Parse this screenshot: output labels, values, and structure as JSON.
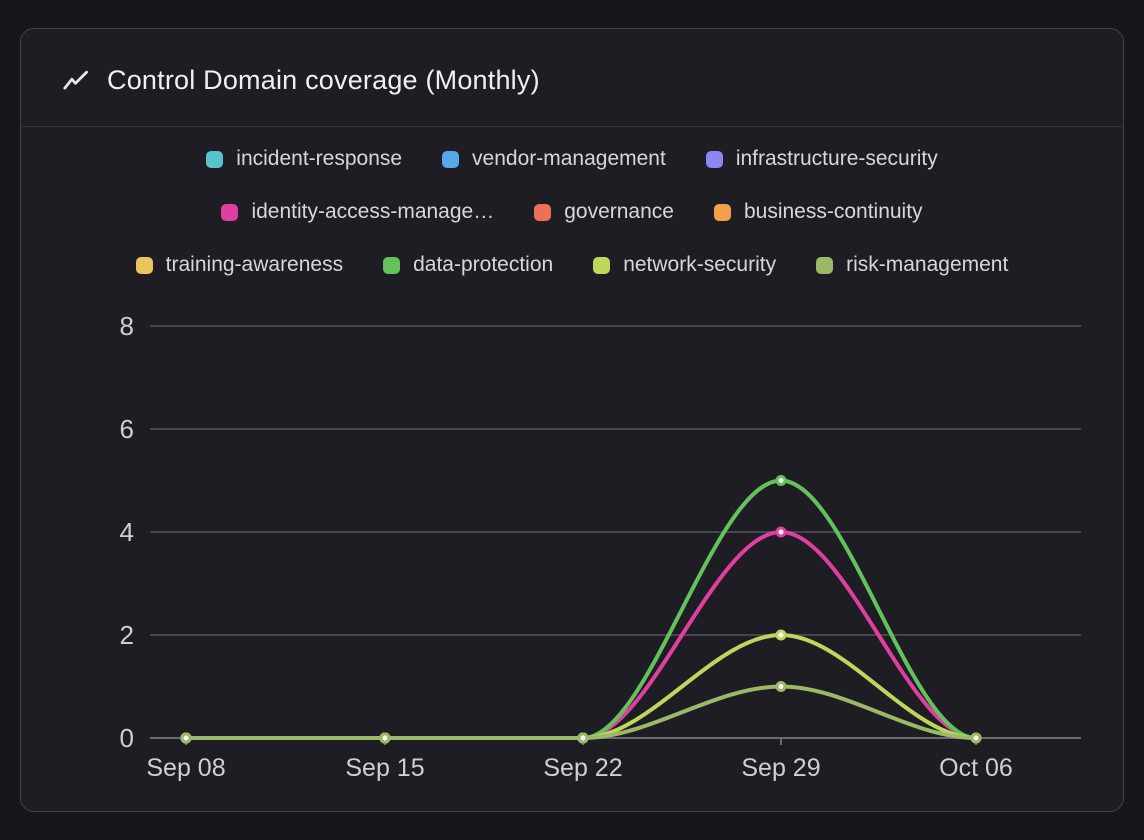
{
  "card": {
    "icon": "trend-line-icon"
  },
  "chart_data": {
    "type": "line",
    "title": "Control Domain coverage (Monthly)",
    "xlabel": "",
    "ylabel": "",
    "categories": [
      "Sep 08",
      "Sep 15",
      "Sep 22",
      "Sep 29",
      "Oct 06"
    ],
    "ylim": [
      0,
      8
    ],
    "yticks": [
      0,
      2,
      4,
      6,
      8
    ],
    "grid": true,
    "legend_position": "top",
    "legend_rows": [
      [
        0,
        1,
        2
      ],
      [
        3,
        4,
        5
      ],
      [
        6,
        7,
        8,
        9
      ]
    ],
    "series": [
      {
        "name": "incident-response",
        "label": "incident-response",
        "color": "#56c3cf",
        "values": [
          0,
          0,
          0,
          null,
          null
        ]
      },
      {
        "name": "vendor-management",
        "label": "vendor-management",
        "color": "#58a7e8",
        "values": [
          0,
          0,
          0,
          null,
          null
        ]
      },
      {
        "name": "infrastructure-security",
        "label": "infrastructure-security",
        "color": "#8b86f2",
        "values": [
          0,
          0,
          0,
          null,
          null
        ]
      },
      {
        "name": "identity-access-management",
        "label": "identity-access-manage…",
        "color": "#df3f9f",
        "values": [
          0,
          0,
          0,
          4,
          0
        ]
      },
      {
        "name": "governance",
        "label": "governance",
        "color": "#ec7257",
        "values": [
          0,
          0,
          0,
          null,
          null
        ]
      },
      {
        "name": "business-continuity",
        "label": "business-continuity",
        "color": "#f0a24a",
        "values": [
          0,
          0,
          0,
          null,
          null
        ]
      },
      {
        "name": "training-awareness",
        "label": "training-awareness",
        "color": "#ecc45c",
        "values": [
          0,
          0,
          0,
          null,
          null
        ]
      },
      {
        "name": "data-protection",
        "label": "data-protection",
        "color": "#63c25c",
        "values": [
          0,
          0,
          0,
          5,
          0
        ]
      },
      {
        "name": "network-security",
        "label": "network-security",
        "color": "#bdd75c",
        "values": [
          0,
          0,
          0,
          2,
          0
        ]
      },
      {
        "name": "risk-management",
        "label": "risk-management",
        "color": "#9cb969",
        "values": [
          0,
          0,
          0,
          1,
          0
        ]
      }
    ],
    "colors": {
      "grid_line": "#47464e",
      "axis_line": "#6b6a73",
      "tick_label": "#cfcfd3",
      "marker_fill": "#ffffff"
    }
  }
}
